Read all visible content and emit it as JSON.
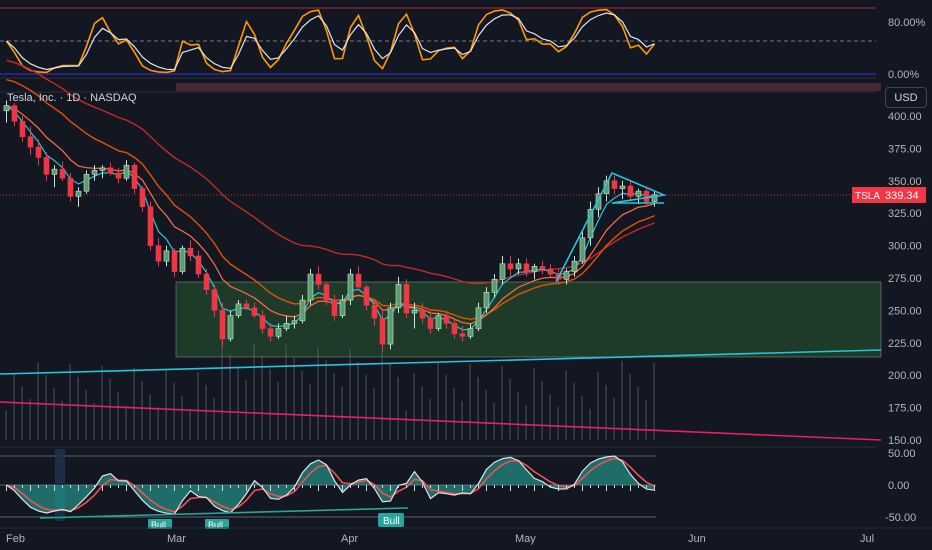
{
  "symbol": {
    "title": "Tesla, Inc. · 1D · NASDAQ",
    "ticker": "TSLA",
    "last_price": "339.34",
    "currency_button": "USD"
  },
  "rsi_pane": {
    "ticks": [
      "80.00%",
      "0.00%"
    ]
  },
  "price_pane": {
    "ticks": [
      "400.00",
      "375.00",
      "350.00",
      "325.00",
      "300.00",
      "275.00",
      "250.00",
      "225.00",
      "200.00",
      "175.00",
      "150.00"
    ]
  },
  "osc_pane": {
    "ticks": [
      "50.00",
      "0.00",
      "-50.00"
    ],
    "labels": [
      "Bull",
      "Bull",
      "Bull"
    ]
  },
  "time_axis": {
    "labels": [
      "Feb",
      "Mar",
      "Apr",
      "May",
      "Jun",
      "Jul"
    ]
  },
  "colors": {
    "background": "#131722",
    "up": "#26a69a",
    "down": "#ef5350",
    "price_label": "#f23645",
    "zone": "#1e3b2a",
    "trendline": "#26c6da"
  },
  "chart_data": {
    "type": "candlestick",
    "title": "Tesla, Inc. · 1D · NASDAQ",
    "ylim": [
      150,
      410
    ],
    "last": 339.34,
    "candles": [
      [
        404,
        412,
        395,
        408
      ],
      [
        408,
        410,
        392,
        396
      ],
      [
        396,
        400,
        380,
        384
      ],
      [
        384,
        392,
        370,
        376
      ],
      [
        376,
        382,
        362,
        368
      ],
      [
        368,
        372,
        350,
        355
      ],
      [
        355,
        362,
        345,
        359
      ],
      [
        359,
        365,
        350,
        352
      ],
      [
        352,
        356,
        334,
        338
      ],
      [
        338,
        345,
        330,
        342
      ],
      [
        342,
        358,
        340,
        355
      ],
      [
        355,
        362,
        350,
        358
      ],
      [
        358,
        362,
        352,
        360
      ],
      [
        360,
        364,
        354,
        356
      ],
      [
        356,
        360,
        348,
        352
      ],
      [
        352,
        366,
        350,
        362
      ],
      [
        362,
        364,
        340,
        344
      ],
      [
        344,
        346,
        326,
        330
      ],
      [
        330,
        334,
        296,
        300
      ],
      [
        300,
        306,
        284,
        288
      ],
      [
        288,
        300,
        284,
        296
      ],
      [
        296,
        298,
        276,
        280
      ],
      [
        280,
        300,
        278,
        298
      ],
      [
        298,
        304,
        288,
        292
      ],
      [
        292,
        296,
        275,
        278
      ],
      [
        278,
        282,
        262,
        266
      ],
      [
        266,
        270,
        245,
        250
      ],
      [
        250,
        256,
        222,
        228
      ],
      [
        228,
        250,
        226,
        246
      ],
      [
        246,
        258,
        244,
        255
      ],
      [
        255,
        258,
        250,
        252
      ],
      [
        252,
        256,
        244,
        246
      ],
      [
        246,
        250,
        232,
        236
      ],
      [
        236,
        240,
        226,
        230
      ],
      [
        230,
        240,
        228,
        236
      ],
      [
        236,
        246,
        234,
        240
      ],
      [
        240,
        246,
        236,
        242
      ],
      [
        242,
        262,
        240,
        258
      ],
      [
        258,
        282,
        254,
        278
      ],
      [
        278,
        284,
        266,
        270
      ],
      [
        270,
        272,
        254,
        258
      ],
      [
        258,
        262,
        242,
        246
      ],
      [
        246,
        262,
        244,
        258
      ],
      [
        258,
        282,
        254,
        278
      ],
      [
        278,
        284,
        266,
        268
      ],
      [
        268,
        270,
        250,
        254
      ],
      [
        254,
        258,
        238,
        244
      ],
      [
        244,
        250,
        218,
        224
      ],
      [
        224,
        256,
        220,
        252
      ],
      [
        252,
        276,
        248,
        270
      ],
      [
        270,
        274,
        244,
        248
      ],
      [
        248,
        256,
        236,
        250
      ],
      [
        250,
        256,
        240,
        244
      ],
      [
        244,
        250,
        232,
        236
      ],
      [
        236,
        248,
        234,
        246
      ],
      [
        246,
        250,
        236,
        240
      ],
      [
        240,
        244,
        228,
        232
      ],
      [
        232,
        238,
        226,
        230
      ],
      [
        230,
        240,
        228,
        236
      ],
      [
        236,
        256,
        234,
        252
      ],
      [
        252,
        268,
        248,
        264
      ],
      [
        264,
        278,
        260,
        274
      ],
      [
        274,
        292,
        270,
        286
      ],
      [
        286,
        292,
        276,
        282
      ],
      [
        282,
        290,
        278,
        286
      ],
      [
        286,
        290,
        276,
        280
      ],
      [
        280,
        286,
        274,
        284
      ],
      [
        284,
        288,
        278,
        282
      ],
      [
        282,
        286,
        276,
        278
      ],
      [
        278,
        282,
        270,
        274
      ],
      [
        274,
        282,
        270,
        280
      ],
      [
        280,
        292,
        276,
        288
      ],
      [
        288,
        312,
        286,
        306
      ],
      [
        306,
        334,
        300,
        328
      ],
      [
        328,
        345,
        322,
        340
      ],
      [
        340,
        354,
        334,
        350
      ],
      [
        350,
        354,
        340,
        344
      ],
      [
        344,
        350,
        336,
        346
      ],
      [
        346,
        350,
        334,
        338
      ],
      [
        338,
        344,
        332,
        342
      ],
      [
        342,
        344,
        330,
        334
      ],
      [
        334,
        342,
        330,
        339.34
      ]
    ]
  }
}
